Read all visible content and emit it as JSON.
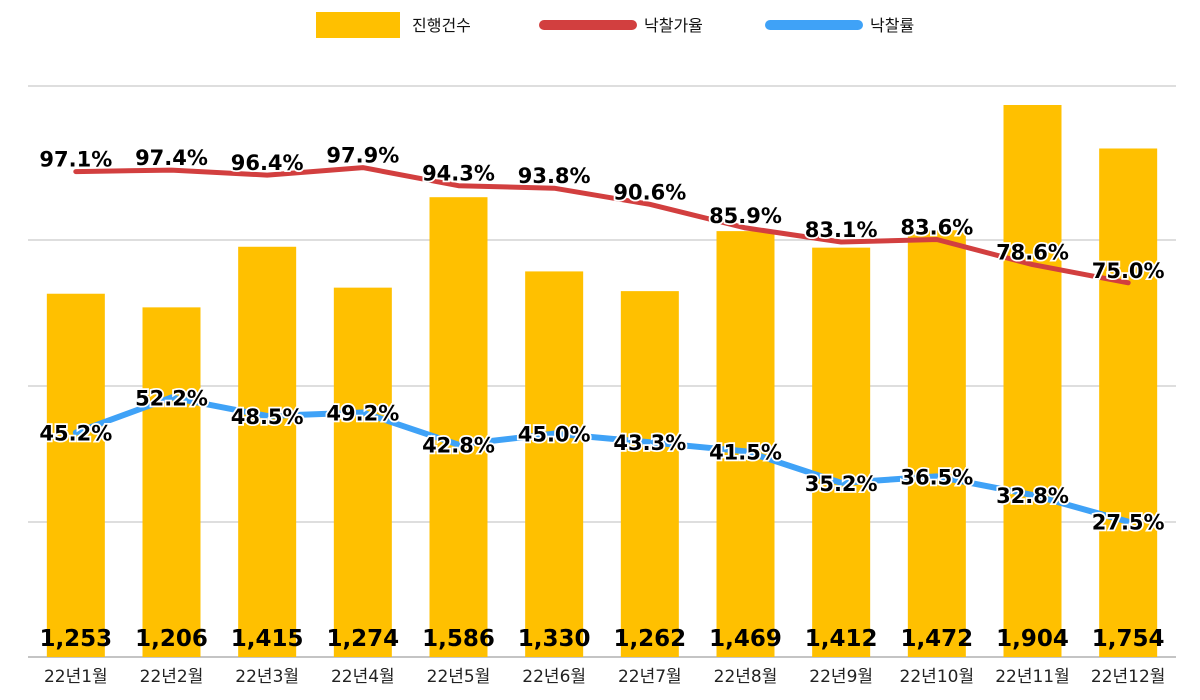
{
  "chart_data": {
    "type": "bar",
    "categories": [
      "22년1월",
      "22년2월",
      "22년3월",
      "22년4월",
      "22년5월",
      "22년6월",
      "22년7월",
      "22년8월",
      "22년9월",
      "22년10월",
      "22년11월",
      "22년12월"
    ],
    "series": [
      {
        "name": "진행건수",
        "kind": "bar",
        "color": "#FFC000",
        "values": [
          1253,
          1206,
          1415,
          1274,
          1586,
          1330,
          1262,
          1469,
          1412,
          1472,
          1904,
          1754
        ],
        "labels": [
          "1,253",
          "1,206",
          "1,415",
          "1,274",
          "1,586",
          "1,330",
          "1,262",
          "1,469",
          "1,412",
          "1,472",
          "1,904",
          "1,754"
        ]
      },
      {
        "name": "낙찰가율",
        "kind": "line",
        "color": "#D23F3F",
        "values": [
          97.1,
          97.4,
          96.4,
          97.9,
          94.3,
          93.8,
          90.6,
          85.9,
          83.1,
          83.6,
          78.6,
          75.0
        ],
        "labels": [
          "97.1%",
          "97.4%",
          "96.4%",
          "97.9%",
          "94.3%",
          "93.8%",
          "90.6%",
          "85.9%",
          "83.1%",
          "83.6%",
          "78.6%",
          "75.0%"
        ]
      },
      {
        "name": "낙찰률",
        "kind": "line",
        "color": "#3FA2F7",
        "values": [
          45.2,
          52.2,
          48.5,
          49.2,
          42.8,
          45.0,
          43.3,
          41.5,
          35.2,
          36.5,
          32.8,
          27.5
        ],
        "labels": [
          "45.2%",
          "52.2%",
          "48.5%",
          "49.2%",
          "42.8%",
          "45.0%",
          "43.3%",
          "41.5%",
          "35.2%",
          "36.5%",
          "32.8%",
          "27.5%"
        ]
      }
    ],
    "legend_position": "top",
    "grid": true
  }
}
